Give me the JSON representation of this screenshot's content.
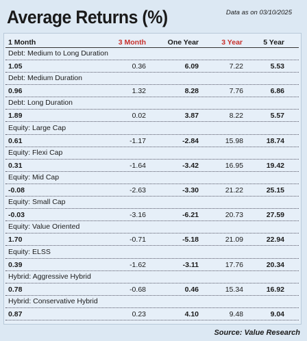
{
  "header": {
    "title": "Average Returns (%)",
    "note": "Data as on 03/10/2025"
  },
  "table": {
    "columns": [
      "1 Month",
      "3 Month",
      "One Year",
      "3 Year",
      "5 Year"
    ],
    "rows": [
      {
        "label": "Debt: Medium to Long Duration",
        "values": [
          "1.05",
          "0.36",
          "6.09",
          "7.22",
          "5.53"
        ]
      },
      {
        "label": "Debt: Medium Duration",
        "values": [
          "0.96",
          "1.32",
          "8.28",
          "7.76",
          "6.86"
        ]
      },
      {
        "label": "Debt: Long Duration",
        "values": [
          "1.89",
          "0.02",
          "3.87",
          "8.22",
          "5.57"
        ]
      },
      {
        "label": "Equity: Large Cap",
        "values": [
          "0.61",
          "-1.17",
          "-2.84",
          "15.98",
          "18.74"
        ]
      },
      {
        "label": "Equity: Flexi Cap",
        "values": [
          "0.31",
          "-1.64",
          "-3.42",
          "16.95",
          "19.42"
        ]
      },
      {
        "label": "Equity: Mid Cap",
        "values": [
          "-0.08",
          "-2.63",
          "-3.30",
          "21.22",
          "25.15"
        ]
      },
      {
        "label": "Equity: Small Cap",
        "values": [
          "-0.03",
          "-3.16",
          "-6.21",
          "20.73",
          "27.59"
        ]
      },
      {
        "label": "Equity: Value Oriented",
        "values": [
          "1.70",
          "-0.71",
          "-5.18",
          "21.09",
          "22.94"
        ]
      },
      {
        "label": "Equity: ELSS",
        "values": [
          "0.39",
          "-1.62",
          "-3.11",
          "17.76",
          "20.34"
        ]
      },
      {
        "label": "Hybrid: Aggressive Hybrid",
        "values": [
          "0.78",
          "-0.68",
          "0.46",
          "15.34",
          "16.92"
        ]
      },
      {
        "label": "Hybrid: Conservative Hybrid",
        "values": [
          "0.87",
          "0.23",
          "4.10",
          "9.48",
          "9.04"
        ]
      }
    ]
  },
  "footer": {
    "source": "Source: Value Research"
  }
}
